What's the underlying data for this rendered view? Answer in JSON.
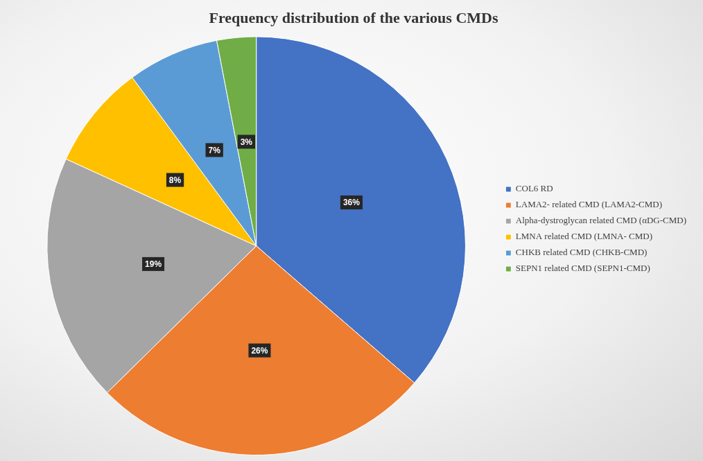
{
  "chart_data": {
    "type": "pie",
    "title": "Frequency distribution of the various CMDs",
    "categories": [
      "COL6 RD",
      "LAMA2- related CMD (LAMA2-CMD)",
      "Alpha-dystroglycan related CMD (αDG-CMD)",
      "LMNA related CMD (LMNA- CMD)",
      "CHKB related CMD (CHKB-CMD)",
      "SEPN1 related CMD (SEPN1-CMD)"
    ],
    "values": [
      36,
      26,
      19,
      8,
      7,
      3
    ],
    "value_labels": [
      "36%",
      "26%",
      "19%",
      "8%",
      "7%",
      "3%"
    ],
    "colors": [
      "#4472c4",
      "#ed7d31",
      "#a5a5a5",
      "#ffc000",
      "#5b9bd5",
      "#70ad47"
    ],
    "data_labels": true,
    "legend": "right"
  }
}
